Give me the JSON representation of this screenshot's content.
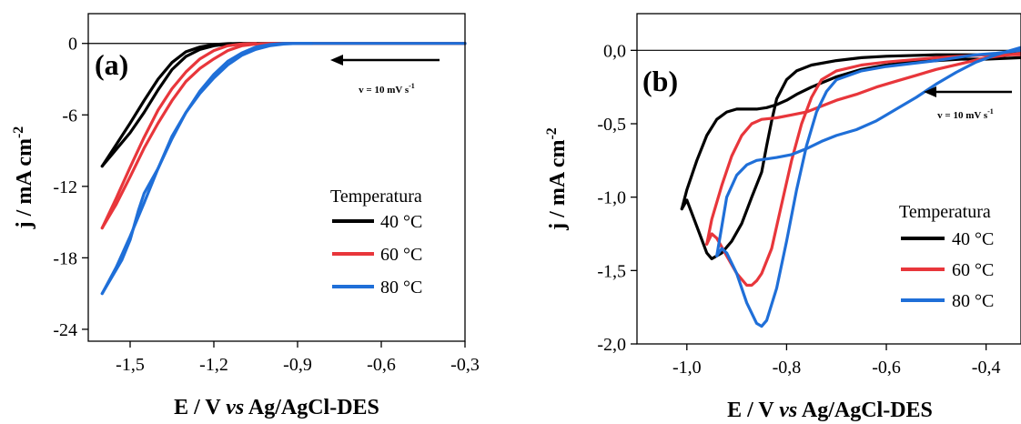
{
  "colors": {
    "40": "#000000",
    "60": "#e8363b",
    "80": "#1f6fd8"
  },
  "chart_data": [
    {
      "type": "line",
      "panel_label": "(a)",
      "xlabel_parts": [
        "E / V ",
        "vs",
        " Ag/AgCl-DES"
      ],
      "ylabel": "j / mA cm",
      "ylabel_sup": "-2",
      "xlim": [
        -1.65,
        -0.3
      ],
      "ylim": [
        -25,
        2.5
      ],
      "xticks": [
        -1.5,
        -1.2,
        -0.9,
        -0.6,
        -0.3
      ],
      "xtick_labels": [
        "-1,5",
        "-1,2",
        "-0,9",
        "-0,6",
        "-0,3"
      ],
      "yticks": [
        0,
        -6,
        -12,
        -18,
        -24
      ],
      "ytick_labels": [
        "0",
        "-6",
        "-12",
        "-18",
        "-24"
      ],
      "scan_rate_label": "v = 10 mV s",
      "scan_rate_sup": "-1",
      "legend_title": "Temperatura",
      "series": [
        {
          "name": "40 °C",
          "color_key": "40",
          "x": [
            -1.6,
            -1.55,
            -1.5,
            -1.45,
            -1.4,
            -1.35,
            -1.3,
            -1.25,
            -1.2,
            -1.15,
            -1.1,
            -1.05,
            -1.0,
            -0.9,
            -0.8,
            -0.7,
            -0.6,
            -0.5,
            -0.4,
            -0.3
          ],
          "y": [
            -10.3,
            -8.9,
            -7.5,
            -5.8,
            -3.9,
            -2.2,
            -1.1,
            -0.5,
            -0.2,
            -0.05,
            0.0,
            0.0,
            0.0,
            0.0,
            0.0,
            0.0,
            0.0,
            0.0,
            0.0,
            0.0
          ],
          "return_x": [
            -1.6,
            -1.55,
            -1.5,
            -1.45,
            -1.4,
            -1.35,
            -1.3,
            -1.25,
            -1.2,
            -1.15,
            -1.1
          ],
          "return_y": [
            -10.3,
            -8.5,
            -6.7,
            -4.8,
            -3.0,
            -1.6,
            -0.7,
            -0.3,
            -0.1,
            -0.02,
            0.0
          ]
        },
        {
          "name": "60 °C",
          "color_key": "60",
          "x": [
            -1.6,
            -1.55,
            -1.5,
            -1.45,
            -1.4,
            -1.35,
            -1.3,
            -1.25,
            -1.2,
            -1.15,
            -1.1,
            -1.05,
            -1.0,
            -0.95,
            -0.9,
            -0.8,
            -0.7,
            -0.6,
            -0.5,
            -0.4,
            -0.3
          ],
          "y": [
            -15.5,
            -13.5,
            -11.2,
            -8.8,
            -6.7,
            -4.8,
            -3.2,
            -2.1,
            -1.3,
            -0.6,
            -0.2,
            -0.05,
            0.0,
            0.0,
            0.0,
            0.0,
            0.0,
            0.0,
            0.0,
            0.0,
            0.0
          ],
          "return_x": [
            -1.6,
            -1.55,
            -1.5,
            -1.45,
            -1.4,
            -1.35,
            -1.3,
            -1.25,
            -1.2,
            -1.15,
            -1.1,
            -1.05
          ],
          "return_y": [
            -15.5,
            -13.0,
            -10.4,
            -7.9,
            -5.6,
            -3.8,
            -2.4,
            -1.3,
            -0.6,
            -0.2,
            -0.05,
            0.0
          ]
        },
        {
          "name": "80 °C",
          "color_key": "80",
          "x": [
            -1.6,
            -1.57,
            -1.53,
            -1.5,
            -1.47,
            -1.45,
            -1.4,
            -1.35,
            -1.3,
            -1.25,
            -1.2,
            -1.15,
            -1.1,
            -1.05,
            -1.0,
            -0.95,
            -0.9,
            -0.85,
            -0.8,
            -0.7,
            -0.6,
            -0.5,
            -0.4,
            -0.3
          ],
          "y": [
            -21.0,
            -19.8,
            -18.2,
            -16.5,
            -14.0,
            -12.6,
            -10.5,
            -7.8,
            -5.8,
            -4.2,
            -2.9,
            -1.8,
            -1.0,
            -0.5,
            -0.2,
            -0.05,
            0.0,
            0.0,
            0.0,
            0.0,
            0.0,
            0.0,
            0.0,
            0.0
          ],
          "return_x": [
            -1.6,
            -1.55,
            -1.5,
            -1.45,
            -1.4,
            -1.35,
            -1.3,
            -1.25,
            -1.2,
            -1.15,
            -1.1,
            -1.05,
            -1.0,
            -0.95,
            -0.9,
            -0.85
          ],
          "return_y": [
            -21.0,
            -18.8,
            -16.2,
            -13.4,
            -10.5,
            -8.0,
            -5.8,
            -4.0,
            -2.6,
            -1.5,
            -0.8,
            -0.3,
            -0.1,
            0.0,
            0.0,
            0.0
          ]
        }
      ]
    },
    {
      "type": "line",
      "panel_label": "(b)",
      "xlabel_parts": [
        "E / V ",
        "vs",
        " Ag/AgCl-DES"
      ],
      "ylabel": "j / mA cm",
      "ylabel_sup": "-2",
      "xlim": [
        -1.1,
        -0.33
      ],
      "ylim": [
        -2.0,
        0.25
      ],
      "xticks": [
        -1.0,
        -0.8,
        -0.6,
        -0.4
      ],
      "xtick_labels": [
        "-1,0",
        "-0,8",
        "-0,6",
        "-0,4"
      ],
      "yticks": [
        0.0,
        -0.5,
        -1.0,
        -1.5,
        -2.0
      ],
      "ytick_labels": [
        "0,0",
        "-0,5",
        "-1,0",
        "-1,5",
        "-2,0"
      ],
      "scan_rate_label": "v = 10 mV s",
      "scan_rate_sup": "-1",
      "legend_title": "Temperatura",
      "series": [
        {
          "name": "40 °C",
          "color_key": "40",
          "x": [
            -1.01,
            -1.0,
            -0.98,
            -0.96,
            -0.95,
            -0.93,
            -0.91,
            -0.89,
            -0.87,
            -0.85,
            -0.84,
            -0.83,
            -0.82,
            -0.8,
            -0.78,
            -0.75,
            -0.7,
            -0.65,
            -0.6,
            -0.5,
            -0.4,
            -0.33
          ],
          "y": [
            -1.08,
            -1.02,
            -1.2,
            -1.38,
            -1.42,
            -1.38,
            -1.3,
            -1.18,
            -1.0,
            -0.83,
            -0.65,
            -0.48,
            -0.33,
            -0.2,
            -0.14,
            -0.1,
            -0.07,
            -0.05,
            -0.04,
            -0.03,
            -0.03,
            -0.02
          ],
          "return_x": [
            -1.01,
            -1.0,
            -0.98,
            -0.96,
            -0.94,
            -0.92,
            -0.9,
            -0.88,
            -0.86,
            -0.84,
            -0.82,
            -0.8,
            -0.78,
            -0.75,
            -0.7,
            -0.65,
            -0.6,
            -0.55,
            -0.5,
            -0.45,
            -0.4,
            -0.33
          ],
          "return_y": [
            -1.08,
            -0.95,
            -0.75,
            -0.58,
            -0.47,
            -0.42,
            -0.4,
            -0.4,
            -0.4,
            -0.39,
            -0.37,
            -0.34,
            -0.3,
            -0.25,
            -0.18,
            -0.13,
            -0.1,
            -0.08,
            -0.07,
            -0.06,
            -0.06,
            -0.05
          ]
        },
        {
          "name": "60 °C",
          "color_key": "60",
          "x": [
            -0.96,
            -0.95,
            -0.94,
            -0.92,
            -0.9,
            -0.88,
            -0.87,
            -0.86,
            -0.85,
            -0.83,
            -0.81,
            -0.79,
            -0.77,
            -0.75,
            -0.73,
            -0.7,
            -0.65,
            -0.6,
            -0.5,
            -0.4,
            -0.33
          ],
          "y": [
            -1.32,
            -1.25,
            -1.28,
            -1.4,
            -1.52,
            -1.6,
            -1.6,
            -1.57,
            -1.52,
            -1.35,
            -1.05,
            -0.75,
            -0.5,
            -0.32,
            -0.2,
            -0.14,
            -0.1,
            -0.08,
            -0.05,
            -0.03,
            -0.03
          ],
          "return_x": [
            -0.96,
            -0.95,
            -0.93,
            -0.91,
            -0.89,
            -0.87,
            -0.85,
            -0.82,
            -0.79,
            -0.76,
            -0.73,
            -0.7,
            -0.66,
            -0.62,
            -0.58,
            -0.54,
            -0.5,
            -0.45,
            -0.4,
            -0.33
          ],
          "return_y": [
            -1.32,
            -1.15,
            -0.92,
            -0.72,
            -0.58,
            -0.5,
            -0.47,
            -0.46,
            -0.44,
            -0.42,
            -0.38,
            -0.34,
            -0.3,
            -0.25,
            -0.21,
            -0.17,
            -0.13,
            -0.09,
            -0.05,
            -0.02
          ]
        },
        {
          "name": "80 °C",
          "color_key": "80",
          "x": [
            -0.94,
            -0.93,
            -0.92,
            -0.9,
            -0.88,
            -0.86,
            -0.85,
            -0.84,
            -0.82,
            -0.8,
            -0.78,
            -0.76,
            -0.74,
            -0.72,
            -0.7,
            -0.65,
            -0.6,
            -0.5,
            -0.42,
            -0.38,
            -0.33
          ],
          "y": [
            -1.4,
            -1.35,
            -1.38,
            -1.52,
            -1.72,
            -1.86,
            -1.88,
            -1.84,
            -1.62,
            -1.3,
            -0.95,
            -0.65,
            -0.42,
            -0.28,
            -0.2,
            -0.14,
            -0.11,
            -0.07,
            -0.03,
            -0.02,
            0.0
          ],
          "return_x": [
            -0.94,
            -0.93,
            -0.92,
            -0.9,
            -0.88,
            -0.86,
            -0.84,
            -0.82,
            -0.79,
            -0.76,
            -0.73,
            -0.7,
            -0.66,
            -0.62,
            -0.58,
            -0.54,
            -0.5,
            -0.46,
            -0.42,
            -0.38,
            -0.33
          ],
          "return_y": [
            -1.4,
            -1.2,
            -1.0,
            -0.85,
            -0.78,
            -0.75,
            -0.74,
            -0.73,
            -0.71,
            -0.67,
            -0.62,
            -0.58,
            -0.54,
            -0.48,
            -0.4,
            -0.32,
            -0.23,
            -0.15,
            -0.08,
            -0.03,
            0.02
          ]
        }
      ]
    }
  ]
}
